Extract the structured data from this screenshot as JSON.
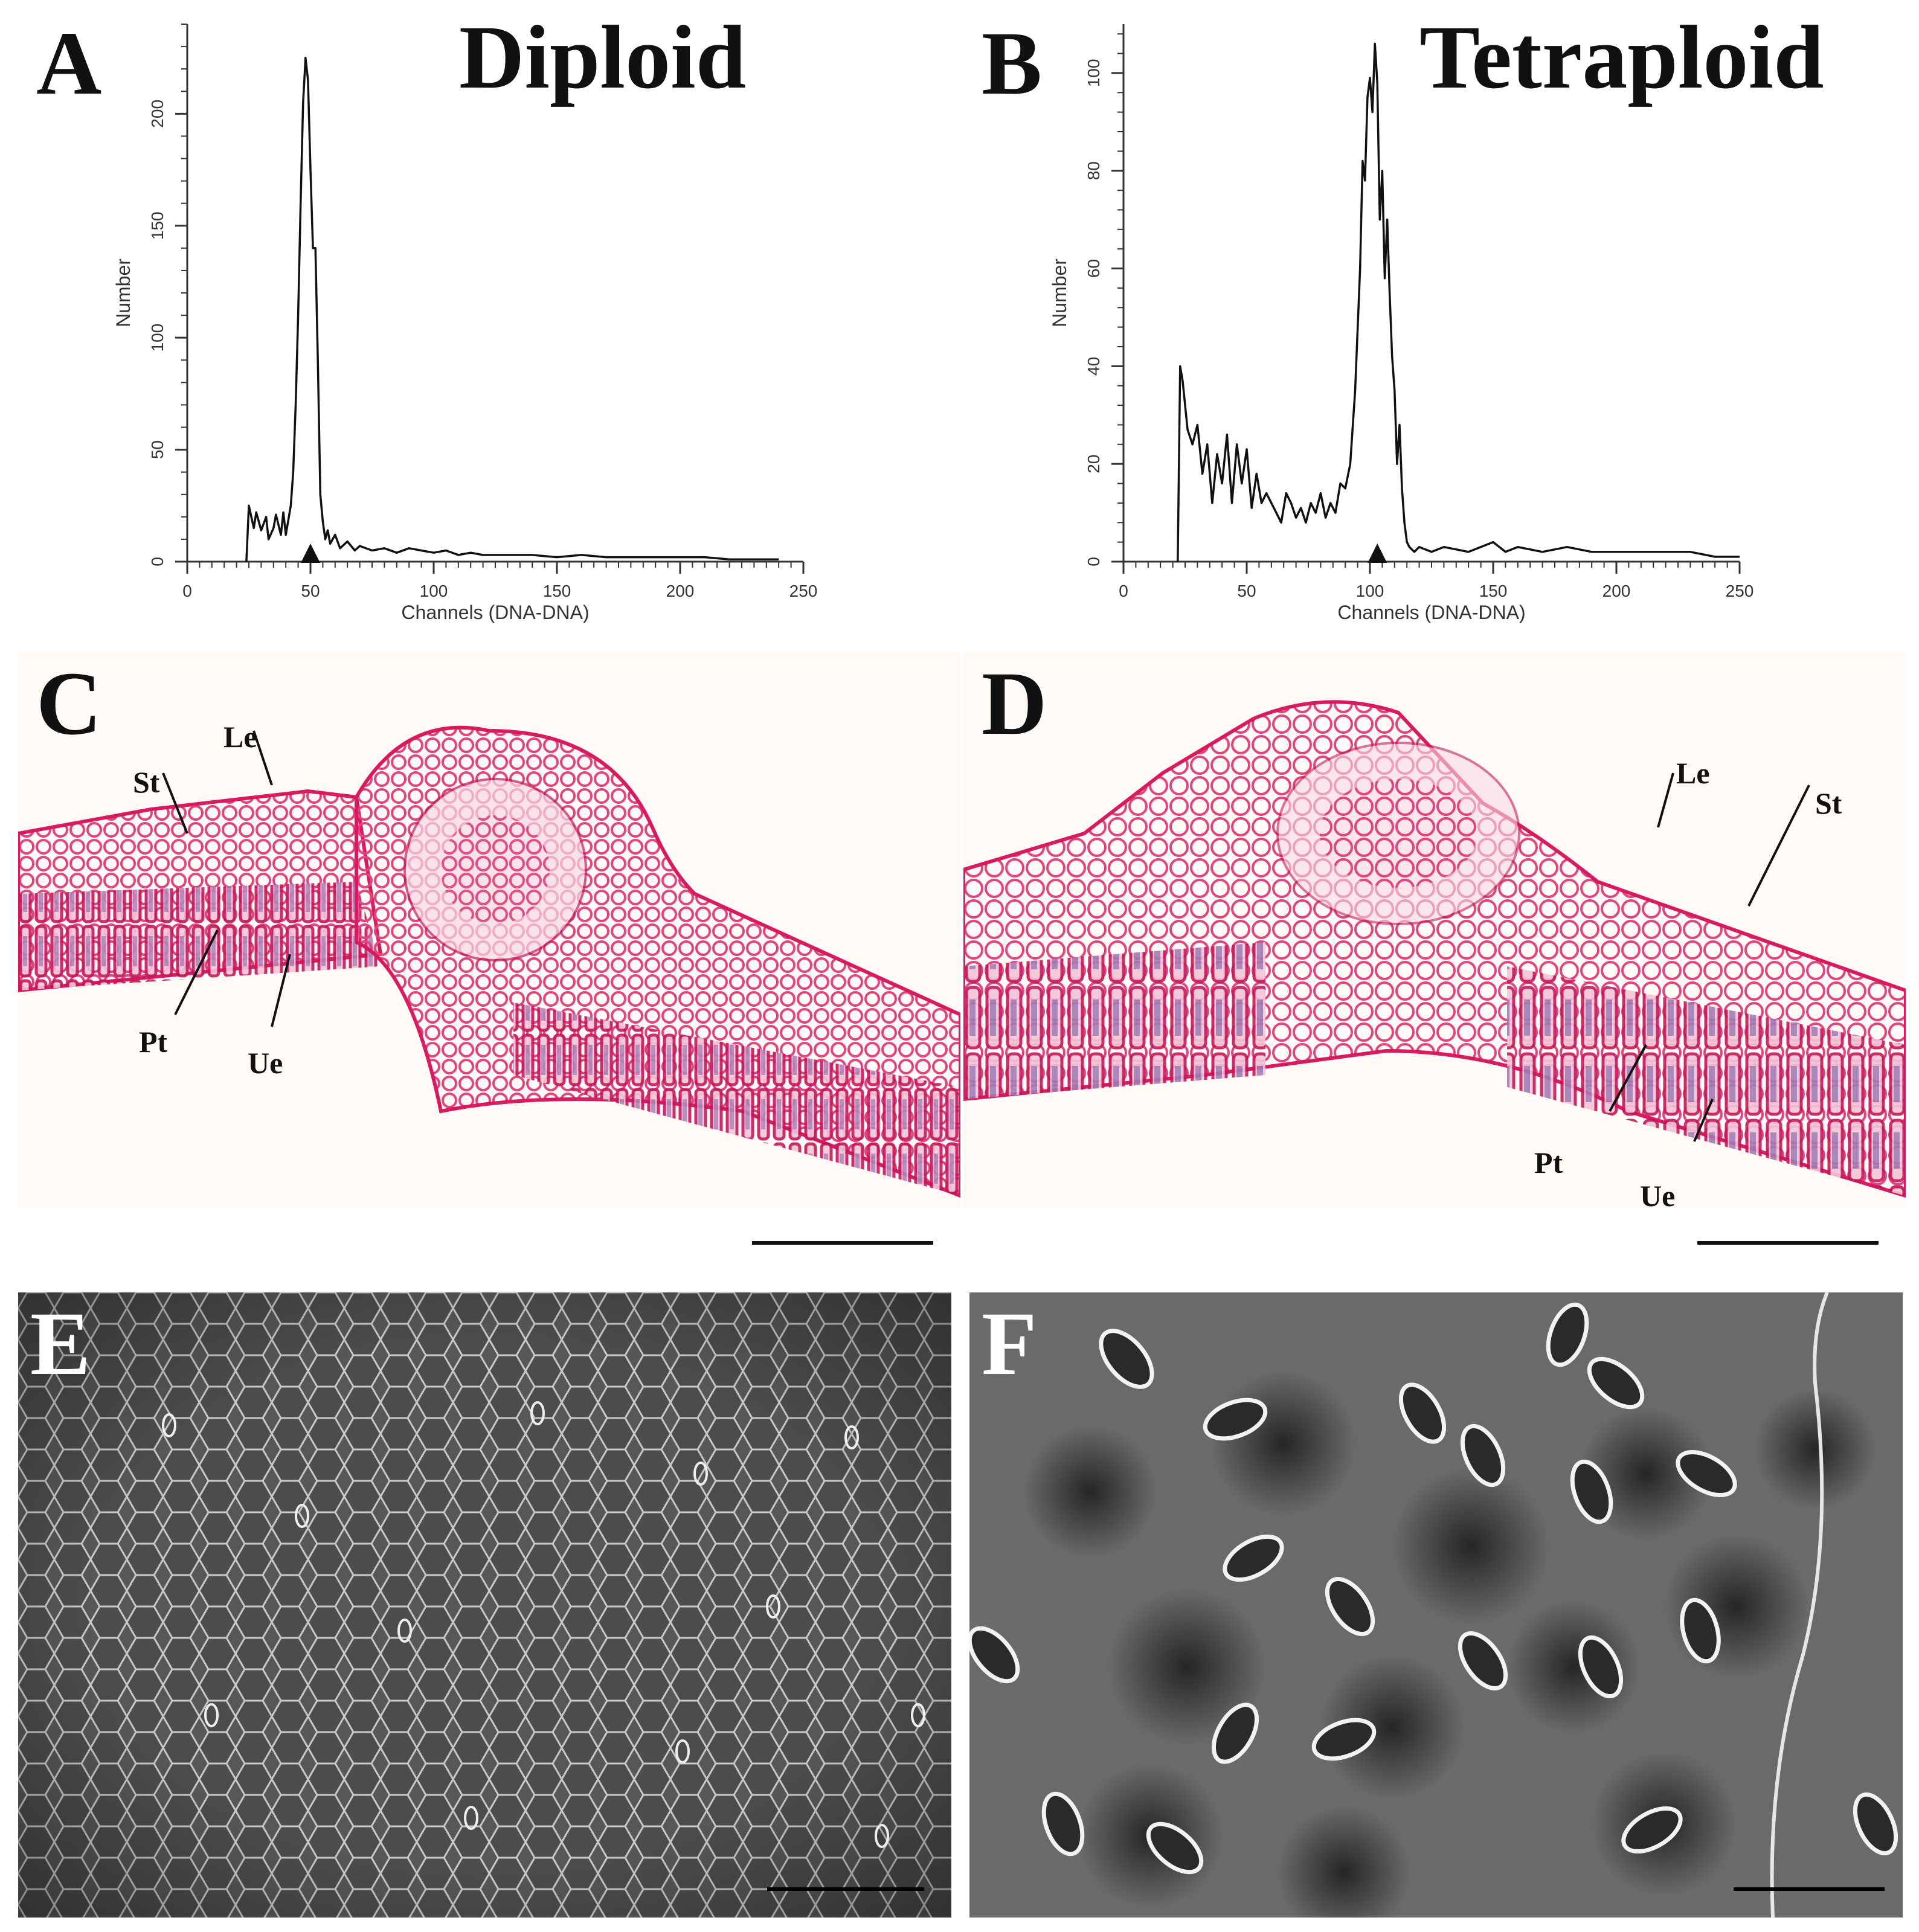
{
  "figure": {
    "panels": {
      "a": {
        "letter": "A",
        "title": "Diploid"
      },
      "b": {
        "letter": "B",
        "title": "Tetraploid"
      },
      "c": {
        "letter": "C",
        "labels": {
          "le": "Le",
          "st": "St",
          "pt": "Pt",
          "ue": "Ue"
        }
      },
      "d": {
        "letter": "D",
        "labels": {
          "le": "Le",
          "st": "St",
          "pt": "Pt",
          "ue": "Ue"
        }
      },
      "e": {
        "letter": "E"
      },
      "f": {
        "letter": "F"
      }
    }
  },
  "chart_data": [
    {
      "type": "line",
      "panel": "A",
      "title": "Diploid",
      "xlabel": "Channels (DNA-DNA)",
      "ylabel": "Number",
      "xlim": [
        0,
        250
      ],
      "ylim": [
        0,
        240
      ],
      "xticks": [
        0,
        50,
        100,
        150,
        200,
        250
      ],
      "yticks": [
        0,
        50,
        100,
        150,
        200
      ],
      "marker_x": 50,
      "x": [
        24,
        25,
        27,
        28,
        30,
        32,
        33,
        35,
        36,
        38,
        39,
        40,
        42,
        43,
        44,
        45,
        46,
        47,
        48,
        49,
        50,
        51,
        52,
        53,
        54,
        55,
        56,
        57,
        58,
        60,
        62,
        65,
        68,
        70,
        75,
        80,
        85,
        90,
        95,
        100,
        105,
        110,
        115,
        120,
        130,
        140,
        150,
        160,
        170,
        180,
        190,
        200,
        210,
        220,
        230,
        240
      ],
      "y": [
        0,
        25,
        15,
        22,
        14,
        20,
        10,
        15,
        21,
        12,
        22,
        12,
        25,
        40,
        70,
        110,
        160,
        205,
        225,
        215,
        175,
        140,
        140,
        90,
        30,
        18,
        10,
        14,
        8,
        12,
        6,
        9,
        5,
        7,
        5,
        6,
        4,
        6,
        5,
        4,
        5,
        3,
        4,
        3,
        3,
        3,
        2,
        3,
        2,
        2,
        2,
        2,
        2,
        1,
        1,
        1
      ]
    },
    {
      "type": "line",
      "panel": "B",
      "title": "Tetraploid",
      "xlabel": "Channels (DNA-DNA)",
      "ylabel": "Number",
      "xlim": [
        0,
        250
      ],
      "ylim": [
        0,
        110
      ],
      "xticks": [
        0,
        50,
        100,
        150,
        200,
        250
      ],
      "yticks": [
        0,
        20,
        40,
        60,
        80,
        100
      ],
      "marker_x": 103,
      "x": [
        22,
        23,
        24,
        26,
        28,
        30,
        32,
        34,
        36,
        38,
        40,
        42,
        44,
        46,
        48,
        50,
        52,
        54,
        56,
        58,
        60,
        62,
        64,
        66,
        68,
        70,
        72,
        74,
        76,
        78,
        80,
        82,
        84,
        86,
        88,
        90,
        92,
        94,
        96,
        97,
        98,
        99,
        100,
        101,
        102,
        103,
        104,
        105,
        106,
        107,
        108,
        109,
        110,
        111,
        112,
        113,
        114,
        115,
        116,
        118,
        120,
        125,
        130,
        140,
        150,
        155,
        160,
        170,
        180,
        190,
        200,
        210,
        220,
        230,
        240,
        250
      ],
      "y": [
        0,
        40,
        37,
        27,
        24,
        28,
        18,
        24,
        12,
        22,
        16,
        26,
        12,
        24,
        16,
        23,
        11,
        18,
        12,
        14,
        12,
        10,
        8,
        14,
        12,
        9,
        11,
        8,
        12,
        10,
        14,
        9,
        12,
        10,
        16,
        15,
        20,
        35,
        60,
        82,
        78,
        95,
        99,
        92,
        106,
        98,
        70,
        80,
        58,
        70,
        55,
        42,
        35,
        20,
        28,
        15,
        8,
        4,
        3,
        2,
        3,
        2,
        3,
        2,
        4,
        2,
        3,
        2,
        3,
        2,
        2,
        2,
        2,
        2,
        1,
        1
      ]
    }
  ]
}
